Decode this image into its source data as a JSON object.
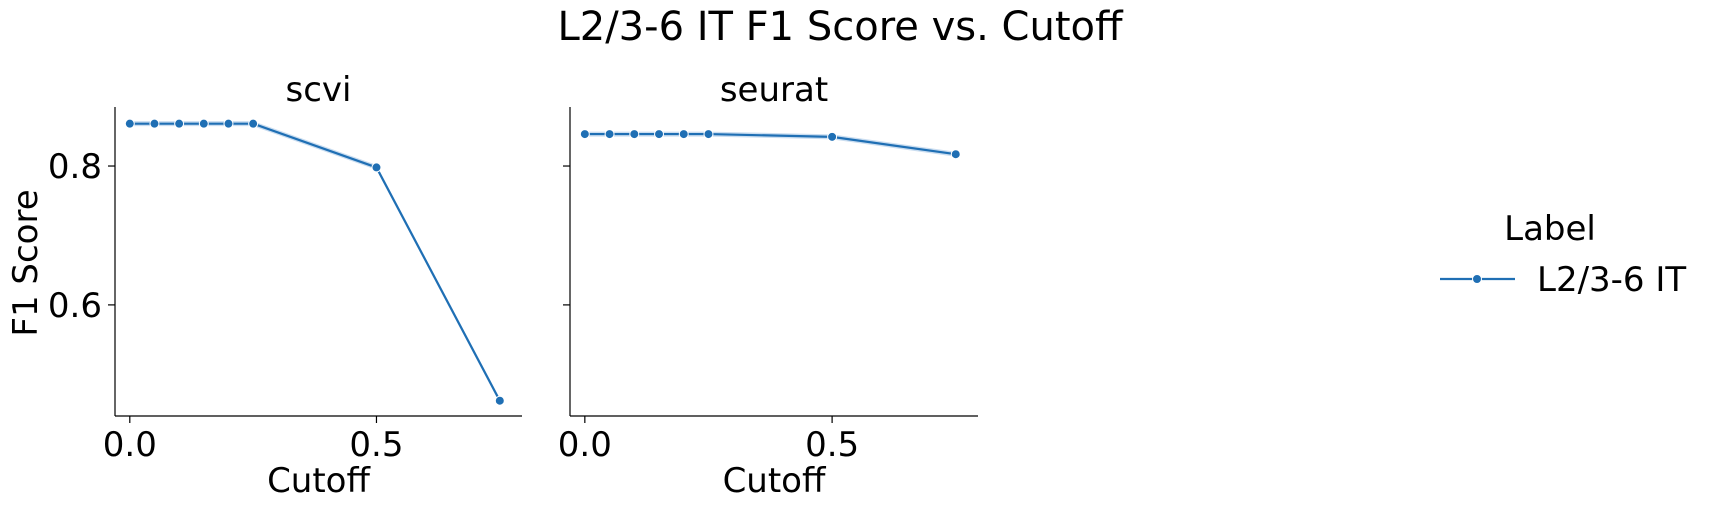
{
  "title": "L2/3-6 IT F1 Score vs. Cutoff",
  "y_axis_label": "F1 Score",
  "legend": {
    "title": "Label",
    "entries": [
      "L2/3-6 IT"
    ]
  },
  "colors": {
    "series": "#1f6fb4",
    "band": "#9ec1e3"
  },
  "chart_data": [
    {
      "type": "line",
      "title": "scvi",
      "xlabel": "Cutoff",
      "ylabel": "F1 Score",
      "xlim": [
        -0.03,
        0.795
      ],
      "ylim": [
        0.44,
        0.885
      ],
      "xticks": [
        "0.0",
        "0.5"
      ],
      "yticks": [
        "0.6",
        "0.8"
      ],
      "grid": false,
      "legend_position": "right",
      "series": [
        {
          "name": "L2/3-6 IT",
          "x": [
            0.0,
            0.05,
            0.1,
            0.15,
            0.2,
            0.25,
            0.5,
            0.75
          ],
          "y": [
            0.861,
            0.861,
            0.861,
            0.861,
            0.861,
            0.861,
            0.798,
            0.462
          ]
        }
      ]
    },
    {
      "type": "line",
      "title": "seurat",
      "xlabel": "Cutoff",
      "ylabel": "",
      "xlim": [
        -0.03,
        0.795
      ],
      "ylim": [
        0.44,
        0.885
      ],
      "xticks": [
        "0.0",
        "0.5"
      ],
      "yticks": [],
      "grid": false,
      "legend_position": "right",
      "series": [
        {
          "name": "L2/3-6 IT",
          "x": [
            0.0,
            0.05,
            0.1,
            0.15,
            0.2,
            0.25,
            0.5,
            0.75
          ],
          "y": [
            0.846,
            0.846,
            0.846,
            0.846,
            0.846,
            0.846,
            0.842,
            0.817
          ]
        }
      ]
    }
  ]
}
